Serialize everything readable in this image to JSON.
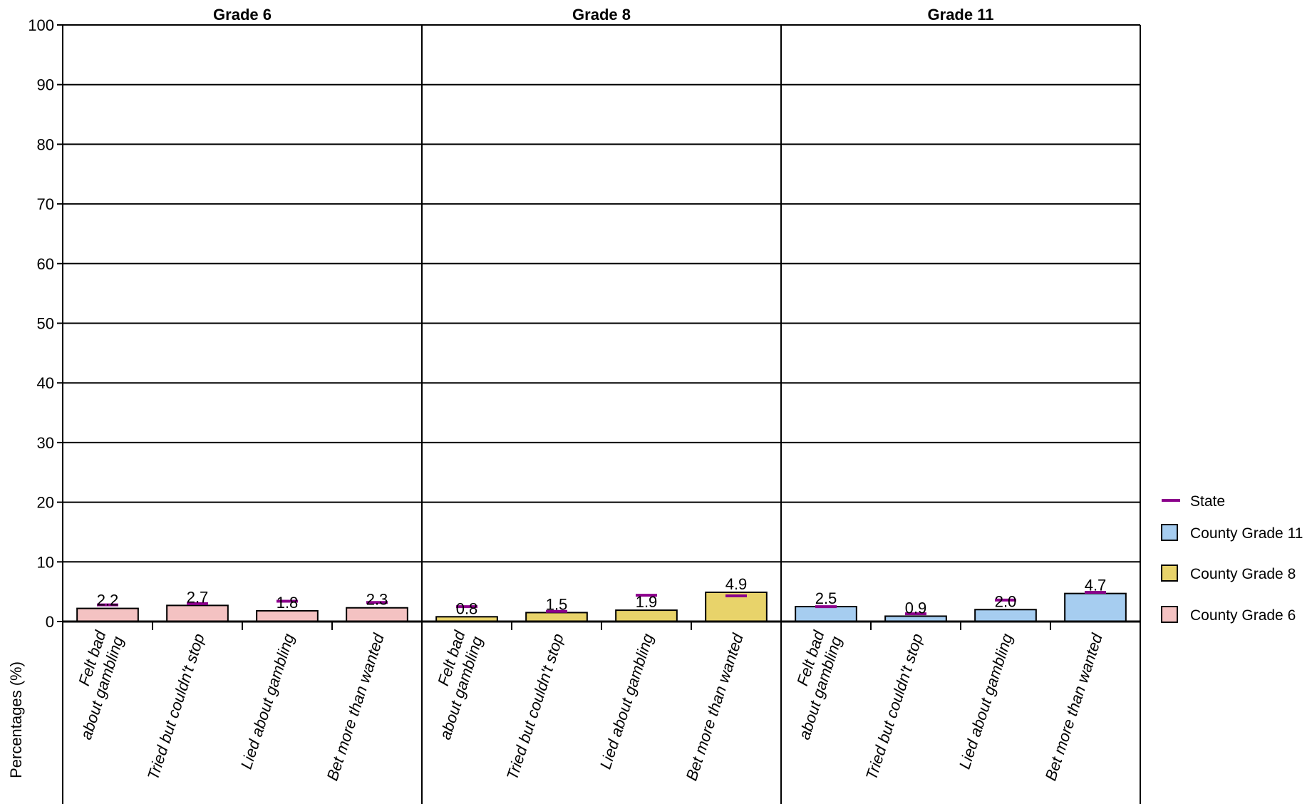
{
  "chart_data": {
    "type": "bar",
    "ylabel": "Percentages (%)",
    "ylim": [
      0,
      100
    ],
    "yticks": [
      0,
      10,
      20,
      30,
      40,
      50,
      60,
      70,
      80,
      90,
      100
    ],
    "grid": true,
    "legend_position": "right",
    "categories": [
      [
        "Felt bad",
        "about gambling"
      ],
      [
        "Tried but couldn't stop"
      ],
      [
        "Lied about gambling"
      ],
      [
        "Bet more than wanted"
      ]
    ],
    "panels": [
      {
        "title": "Grade 6",
        "series_name": "County Grade 6",
        "color": "#f4c2c2",
        "values": [
          2.2,
          2.7,
          1.8,
          2.3
        ],
        "state": [
          2.8,
          3.0,
          3.4,
          3.2
        ]
      },
      {
        "title": "Grade 8",
        "series_name": "County Grade 8",
        "color": "#e8d36a",
        "values": [
          0.8,
          1.5,
          1.9,
          4.9
        ],
        "state": [
          2.5,
          1.7,
          4.4,
          4.3
        ]
      },
      {
        "title": "Grade 11",
        "series_name": "County Grade 11",
        "color": "#a6cdf0",
        "values": [
          2.5,
          0.9,
          2.0,
          4.7
        ],
        "state": [
          2.5,
          1.3,
          3.6,
          4.9
        ]
      }
    ],
    "legend": [
      {
        "name": "State",
        "kind": "line",
        "color": "#8b008b"
      },
      {
        "name": "County Grade 11",
        "kind": "box",
        "color": "#a6cdf0"
      },
      {
        "name": "County Grade 8",
        "kind": "box",
        "color": "#e8d36a"
      },
      {
        "name": "County Grade 6",
        "kind": "box",
        "color": "#f4c2c2"
      }
    ],
    "state_color": "#8b008b"
  }
}
